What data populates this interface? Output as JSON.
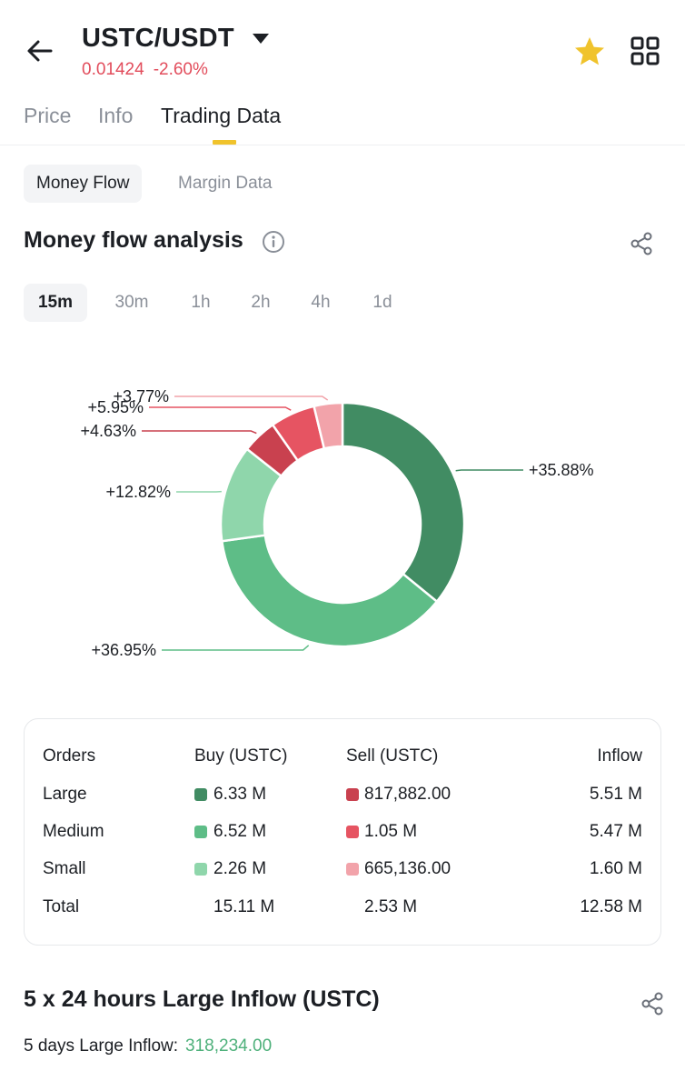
{
  "header": {
    "pair": "USTC/USDT",
    "price": "0.01424",
    "change": "-2.60%"
  },
  "tabs": [
    {
      "label": "Price"
    },
    {
      "label": "Info"
    },
    {
      "label": "Trading Data"
    }
  ],
  "active_tab": "Trading Data",
  "segments": [
    {
      "label": "Money Flow"
    },
    {
      "label": "Margin Data"
    }
  ],
  "active_segment": "Money Flow",
  "money_flow": {
    "title": "Money flow analysis",
    "intervals": [
      "15m",
      "30m",
      "1h",
      "2h",
      "4h",
      "1d"
    ],
    "active_interval": "15m"
  },
  "chart_data": {
    "type": "pie",
    "style": "donut",
    "slices": [
      {
        "label": "+35.88%",
        "value": 35.88,
        "color": "#418c63"
      },
      {
        "label": "+36.95%",
        "value": 36.95,
        "color": "#5ebd87"
      },
      {
        "label": "+12.82%",
        "value": 12.82,
        "color": "#8fd6ab"
      },
      {
        "label": "+4.63%",
        "value": 4.63,
        "color": "#c9414f"
      },
      {
        "label": "+5.95%",
        "value": 5.95,
        "color": "#e65462"
      },
      {
        "label": "+3.77%",
        "value": 3.77,
        "color": "#f2a3aa"
      }
    ]
  },
  "orders_table": {
    "headers": [
      "Orders",
      "Buy (USTC)",
      "Sell (USTC)",
      "Inflow"
    ],
    "rows": [
      {
        "name": "Large",
        "buy": "6.33 M",
        "sell": "817,882.00",
        "inflow": "5.51 M",
        "buy_color": "#418c63",
        "sell_color": "#c9414f"
      },
      {
        "name": "Medium",
        "buy": "6.52 M",
        "sell": "1.05 M",
        "inflow": "5.47 M",
        "buy_color": "#5ebd87",
        "sell_color": "#e65462"
      },
      {
        "name": "Small",
        "buy": "2.26 M",
        "sell": "665,136.00",
        "inflow": "1.60 M",
        "buy_color": "#8fd6ab",
        "sell_color": "#f2a3aa"
      }
    ],
    "total": {
      "name": "Total",
      "buy": "15.11 M",
      "sell": "2.53 M",
      "inflow": "12.58 M"
    }
  },
  "large_inflow": {
    "title": "5 x 24 hours Large Inflow (USTC)",
    "label": "5 days Large Inflow:",
    "value": "318,234.00"
  },
  "colors": {
    "accent": "#f0c32c",
    "down": "#e24d5c",
    "up": "#4db07a"
  }
}
